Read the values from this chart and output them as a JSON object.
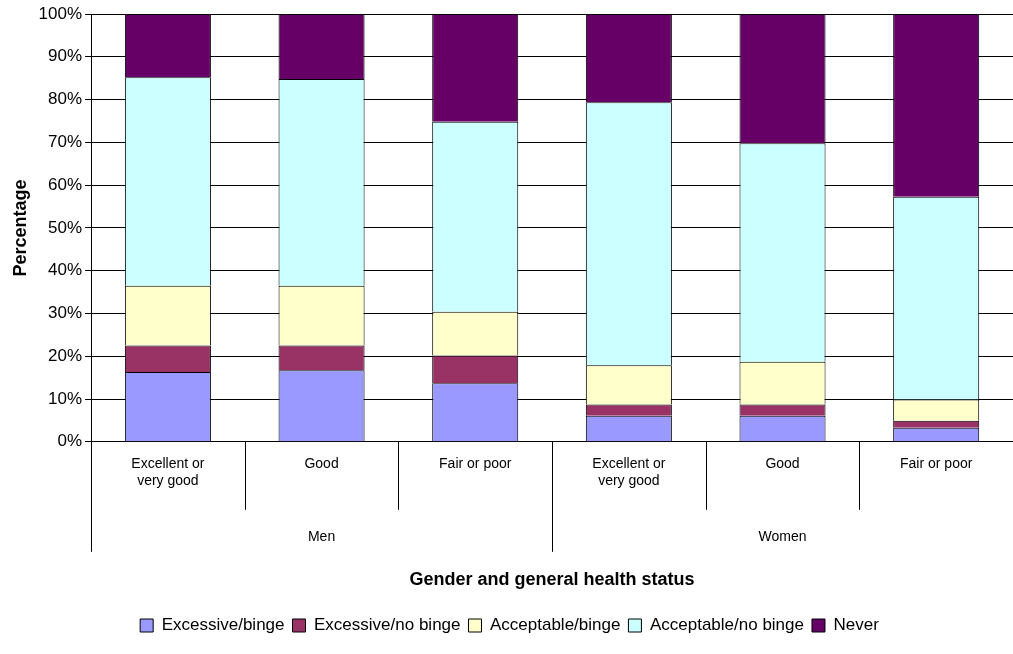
{
  "chart_data": {
    "type": "bar",
    "stacked": true,
    "xlabel": "Gender and general health status",
    "ylabel": "Percentage",
    "categories": [
      "Excellent or very good",
      "Good",
      "Fair or poor",
      "Excellent or very good",
      "Good",
      "Fair or poor"
    ],
    "annotations": [
      "Men",
      "Women"
    ],
    "series": [
      {
        "name": "Excessive/binge",
        "color": "#9999ff",
        "values": [
          16.3,
          16.7,
          13.7,
          6.1,
          6.1,
          3.3
        ]
      },
      {
        "name": "Excessive/no binge",
        "color": "#993366",
        "values": [
          6.2,
          5.8,
          6.5,
          2.6,
          2.6,
          1.6
        ]
      },
      {
        "name": "Acceptable/binge",
        "color": "#ffffcc",
        "values": [
          14.0,
          14.0,
          10.2,
          9.2,
          10.0,
          5.0
        ]
      },
      {
        "name": "Acceptable/no binge",
        "color": "#ccffff",
        "values": [
          48.7,
          48.3,
          44.4,
          61.5,
          51.1,
          47.4
        ]
      },
      {
        "name": "Never",
        "color": "#660066",
        "values": [
          14.8,
          15.2,
          25.2,
          20.6,
          30.2,
          42.7
        ]
      }
    ],
    "ylim": [
      0,
      100
    ],
    "yticks": [
      {
        "value": 0,
        "label": "0%"
      },
      {
        "value": 10,
        "label": "10%"
      },
      {
        "value": 20,
        "label": "20%"
      },
      {
        "value": 30,
        "label": "30%"
      },
      {
        "value": 40,
        "label": "40%"
      },
      {
        "value": 50,
        "label": "50%"
      },
      {
        "value": 60,
        "label": "60%"
      },
      {
        "value": 70,
        "label": "70%"
      },
      {
        "value": 80,
        "label": "80%"
      },
      {
        "value": 90,
        "label": "90%"
      },
      {
        "value": 100,
        "label": "100%"
      }
    ],
    "grid": "y",
    "legend": "bottom"
  }
}
